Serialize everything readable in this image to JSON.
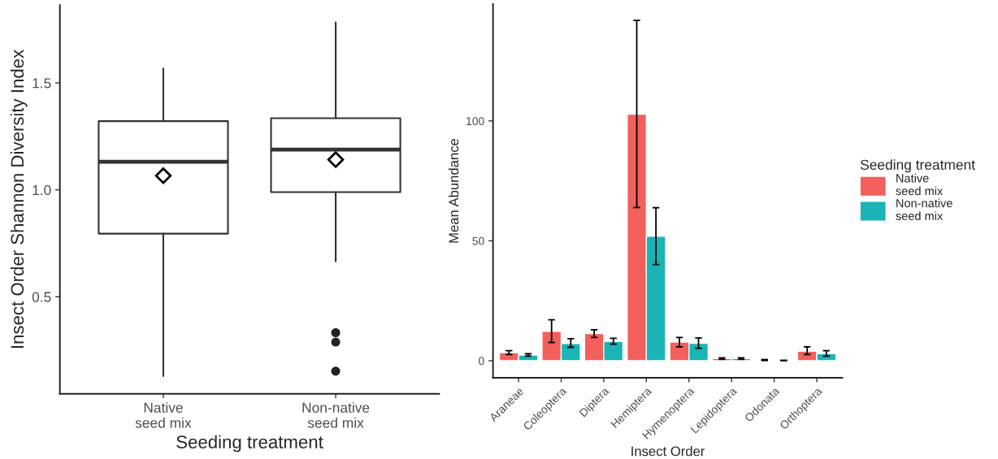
{
  "chart_data": [
    {
      "type": "box",
      "categories": [
        "Native\nseed mix",
        "Non-native\nseed mix"
      ],
      "xlabel": "Seeding treatment",
      "ylabel": "Insect Order Shannon Diversity Index",
      "boxes": [
        {
          "low": 0.129,
          "q1": 0.795,
          "median": 1.131,
          "q3": 1.321,
          "high": 1.567,
          "mean": 1.066
        },
        {
          "low": 0.665,
          "q1": 0.989,
          "median": 1.188,
          "q3": 1.335,
          "high": 1.783,
          "mean": 1.141,
          "outliers": [
            0.332,
            0.288,
            0.152
          ]
        }
      ],
      "ylim": [
        0.046,
        1.864
      ],
      "yticks": [
        0.5,
        {
          "value": 1.0,
          "label": "1.0"
        },
        1.5
      ],
      "grid": false
    },
    {
      "type": "bar",
      "categories": [
        "Araneae",
        "Coleoptera",
        "Diptera",
        "Hemiptera",
        "Hymenoptera",
        "Lepidoptera",
        "Odonata",
        "Orthoptera"
      ],
      "xlabel": "Insect Order",
      "ylabel": "Mean Abundance",
      "legend_title": "Seeding treatment",
      "legend": "right",
      "series": [
        {
          "name": "Native\nseed mix",
          "color": "#f35f5b",
          "values": [
            3.4,
            12.3,
            11.3,
            102.8,
            7.8,
            0.9,
            0.3,
            4.0
          ],
          "errors": [
            0.8,
            [
              7.6,
              17.1
            ],
            1.6,
            [
              63.9,
              141.9
            ],
            [
              5.8,
              9.7
            ],
            0.3,
            0.2,
            [
              2.6,
              5.8
            ]
          ]
        },
        {
          "name": "Non-native\nseed mix",
          "color": "#1ab3b6",
          "values": [
            2.4,
            7.2,
            8.0,
            51.9,
            7.3,
            0.9,
            0.1,
            3.0
          ],
          "errors": [
            0.5,
            [
              5.6,
              9.2
            ],
            [
              6.9,
              9.4
            ],
            [
              40.1,
              63.8
            ],
            [
              5.2,
              9.5
            ],
            0.3,
            0.1,
            [
              1.9,
              4.2
            ]
          ]
        }
      ],
      "ylim": [
        -7.1,
        148.7
      ],
      "yticks": [
        0,
        50,
        100
      ],
      "grid": false
    }
  ]
}
